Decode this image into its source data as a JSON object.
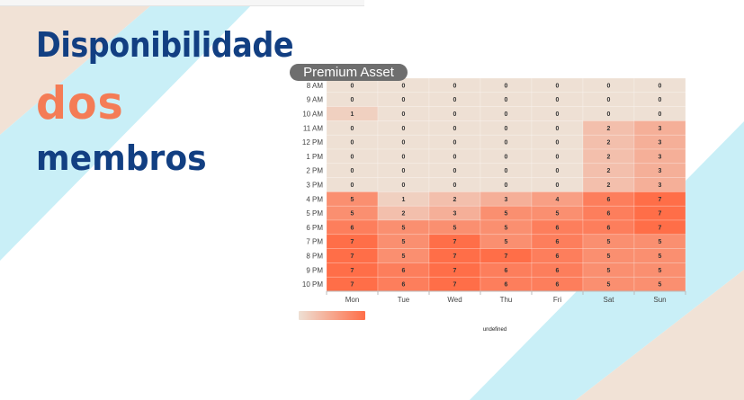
{
  "title": {
    "line1": "Disponibilidade",
    "line2": "dos",
    "line3": "membros"
  },
  "badge": "Premium Asset",
  "colors": {
    "navy": "#123f82",
    "orange": "#f47c56",
    "cyan": "#c9eff7",
    "beige": "#f1e2d6",
    "heat_low": "#eee0d4",
    "heat_high": "#ff6e48"
  },
  "chart_data": {
    "type": "heatmap",
    "title": "",
    "x": [
      "Mon",
      "Tue",
      "Wed",
      "Thu",
      "Fri",
      "Sat",
      "Sun"
    ],
    "y": [
      "8 AM",
      "9 AM",
      "10 AM",
      "11 AM",
      "12 PM",
      "1 PM",
      "2 PM",
      "3 PM",
      "4 PM",
      "5 PM",
      "6 PM",
      "7 PM",
      "8 PM",
      "9 PM",
      "10 PM"
    ],
    "values": [
      [
        0,
        0,
        0,
        0,
        0,
        0,
        0
      ],
      [
        0,
        0,
        0,
        0,
        0,
        0,
        0
      ],
      [
        1,
        0,
        0,
        0,
        0,
        0,
        0
      ],
      [
        0,
        0,
        0,
        0,
        0,
        2,
        3
      ],
      [
        0,
        0,
        0,
        0,
        0,
        2,
        3
      ],
      [
        0,
        0,
        0,
        0,
        0,
        2,
        3
      ],
      [
        0,
        0,
        0,
        0,
        0,
        2,
        3
      ],
      [
        0,
        0,
        0,
        0,
        0,
        2,
        3
      ],
      [
        5,
        1,
        2,
        3,
        4,
        6,
        7
      ],
      [
        5,
        2,
        3,
        5,
        5,
        6,
        7
      ],
      [
        6,
        5,
        5,
        5,
        6,
        6,
        7
      ],
      [
        7,
        5,
        7,
        5,
        6,
        5,
        5
      ],
      [
        7,
        5,
        7,
        7,
        6,
        5,
        5
      ],
      [
        7,
        6,
        7,
        6,
        6,
        5,
        5
      ],
      [
        7,
        6,
        7,
        6,
        6,
        5,
        5
      ]
    ],
    "value_range": [
      0,
      7
    ],
    "legend": "gradient bar, bottom-left",
    "legend_label": "undefined"
  }
}
